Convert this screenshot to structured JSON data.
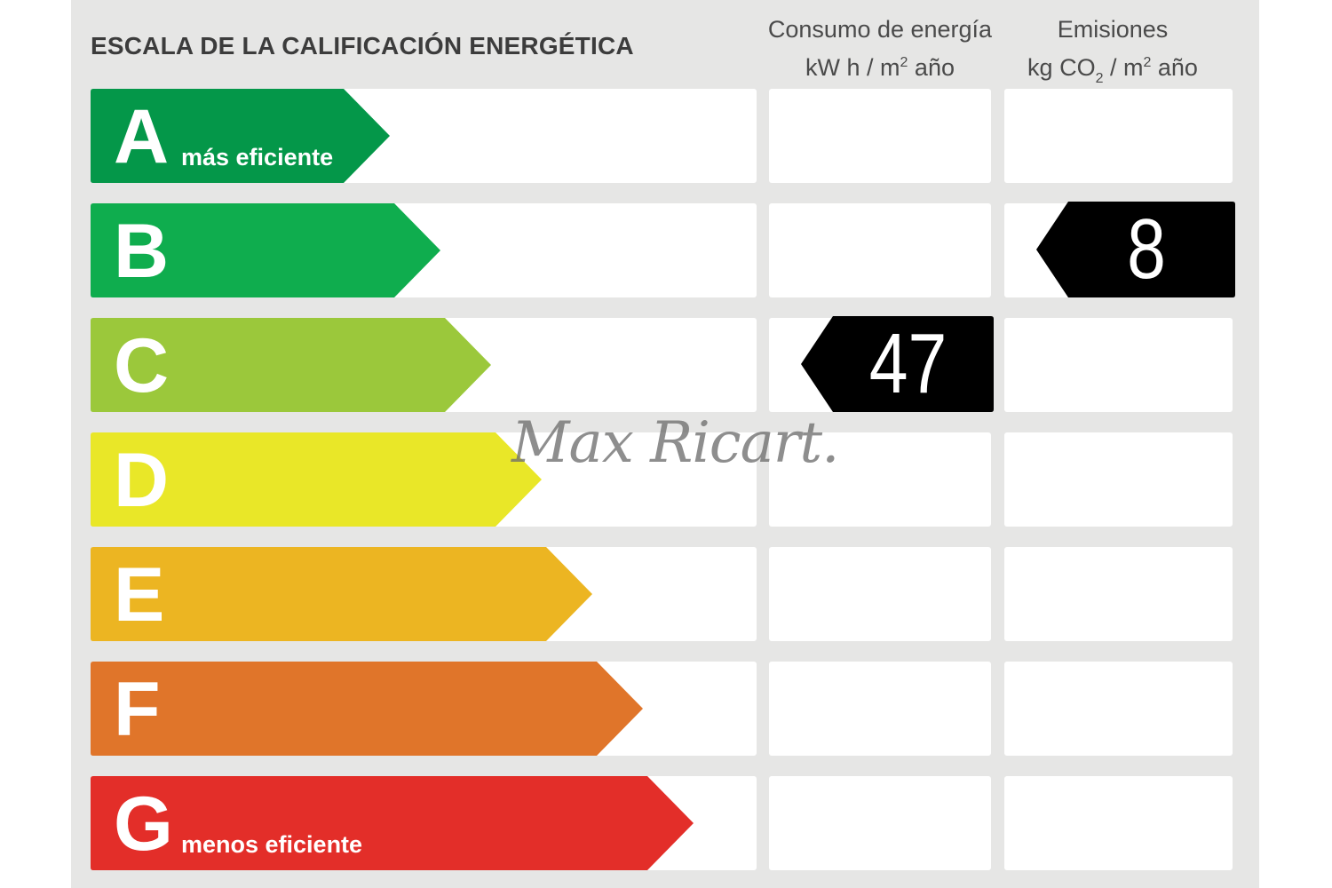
{
  "title": "ESCALA DE LA CALIFICACIÓN ENERGÉTICA",
  "columns": {
    "energy": {
      "line1": "Consumo de energía",
      "unit_pre": "kW h  / m",
      "unit_sup": "2",
      "unit_post": " año"
    },
    "emissions": {
      "line1": "Emisiones",
      "unit_pre": "kg CO",
      "unit_sub": "2",
      "unit_mid": "  / m",
      "unit_sup": "2",
      "unit_post": " año"
    }
  },
  "grades": [
    {
      "letter": "A",
      "note": "más eficiente",
      "color": "#049749"
    },
    {
      "letter": "B",
      "note": "",
      "color": "#0fad4e"
    },
    {
      "letter": "C",
      "note": "",
      "color": "#9bc83b"
    },
    {
      "letter": "D",
      "note": "",
      "color": "#e9e728"
    },
    {
      "letter": "E",
      "note": "",
      "color": "#ecb522"
    },
    {
      "letter": "F",
      "note": "",
      "color": "#e0752a"
    },
    {
      "letter": "G",
      "note": "menos eficiente",
      "color": "#e32e29"
    }
  ],
  "ratings": {
    "energy": {
      "value": "47",
      "grade": "C"
    },
    "emissions": {
      "value": "8",
      "grade": "B"
    }
  },
  "watermark": "Max Ricart."
}
